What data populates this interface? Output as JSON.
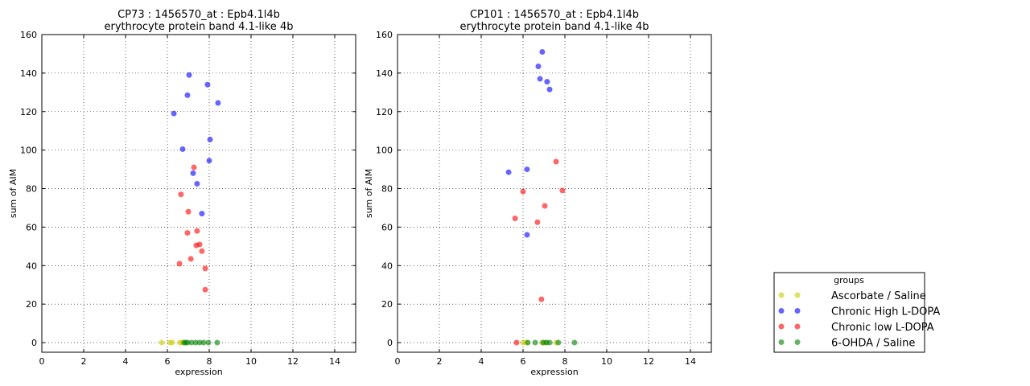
{
  "colors": {
    "Ascorbate / Saline": "#cccc00",
    "Chronic High L-DOPA": "#0000ff",
    "Chronic low L-DOPA": "#ff0000",
    "6-OHDA / Saline": "#008000"
  },
  "legend": {
    "title": "groups",
    "entries": [
      "Ascorbate / Saline",
      "Chronic High L-DOPA",
      "Chronic low L-DOPA",
      "6-OHDA / Saline"
    ],
    "placement": "lower-right outside"
  },
  "chart_data": [
    {
      "type": "scatter",
      "title": "CP73 : 1456570_at : Epb4.1l4b",
      "subtitle": "erythrocyte protein band 4.1-like 4b",
      "xlabel": "expression",
      "ylabel": "sum of AIM",
      "xlim": [
        0,
        15
      ],
      "ylim": [
        -5,
        160
      ],
      "xticks": [
        0,
        2,
        4,
        6,
        8,
        10,
        12,
        14
      ],
      "yticks": [
        0,
        20,
        40,
        60,
        80,
        100,
        120,
        140,
        160
      ],
      "grid": true,
      "series": [
        {
          "name": "Ascorbate / Saline",
          "points": [
            [
              5.73,
              0
            ],
            [
              6.12,
              0
            ],
            [
              6.23,
              0
            ],
            [
              6.6,
              0
            ],
            [
              6.7,
              0
            ]
          ]
        },
        {
          "name": "Chronic High L-DOPA",
          "points": [
            [
              7.04,
              139
            ],
            [
              7.92,
              134
            ],
            [
              6.96,
              128.5
            ],
            [
              8.42,
              124.5
            ],
            [
              6.31,
              119
            ],
            [
              6.73,
              100.5
            ],
            [
              8.04,
              105.5
            ],
            [
              8.0,
              94.5
            ],
            [
              7.23,
              88
            ],
            [
              7.42,
              82.5
            ],
            [
              7.65,
              67
            ]
          ]
        },
        {
          "name": "Chronic low L-DOPA",
          "points": [
            [
              7.27,
              91
            ],
            [
              6.65,
              77
            ],
            [
              7.0,
              68
            ],
            [
              7.42,
              58
            ],
            [
              6.96,
              57
            ],
            [
              7.38,
              50.5
            ],
            [
              7.54,
              51
            ],
            [
              7.65,
              47.5
            ],
            [
              6.58,
              41
            ],
            [
              7.12,
              43.5
            ],
            [
              7.81,
              38.5
            ],
            [
              7.81,
              27.5
            ]
          ]
        },
        {
          "name": "6-OHDA / Saline",
          "points": [
            [
              6.8,
              0
            ],
            [
              6.88,
              0
            ],
            [
              6.96,
              0
            ],
            [
              7.15,
              0
            ],
            [
              7.35,
              0
            ],
            [
              7.54,
              0
            ],
            [
              7.73,
              0
            ],
            [
              7.96,
              0
            ],
            [
              8.38,
              0
            ]
          ]
        }
      ]
    },
    {
      "type": "scatter",
      "title": "CP101 : 1456570_at : Epb4.1l4b",
      "subtitle": "erythrocyte protein band 4.1-like 4b",
      "xlabel": "expression",
      "ylabel": "sum of AIM",
      "xlim": [
        0,
        15
      ],
      "ylim": [
        -5,
        160
      ],
      "xticks": [
        0,
        2,
        4,
        6,
        8,
        10,
        12,
        14
      ],
      "yticks": [
        0,
        20,
        40,
        60,
        80,
        100,
        120,
        140,
        160
      ],
      "grid": true,
      "series": [
        {
          "name": "Ascorbate / Saline",
          "points": [
            [
              6.0,
              0
            ],
            [
              6.15,
              0
            ],
            [
              6.92,
              0
            ],
            [
              7.08,
              0
            ],
            [
              7.58,
              0
            ]
          ]
        },
        {
          "name": "Chronic High L-DOPA",
          "points": [
            [
              6.92,
              151
            ],
            [
              6.73,
              143.5
            ],
            [
              6.81,
              137
            ],
            [
              7.15,
              135.5
            ],
            [
              7.27,
              131.5
            ],
            [
              5.31,
              88.5
            ],
            [
              6.19,
              90
            ],
            [
              6.19,
              56
            ]
          ]
        },
        {
          "name": "Chronic low L-DOPA",
          "points": [
            [
              7.58,
              94
            ],
            [
              6.0,
              78.5
            ],
            [
              7.88,
              79
            ],
            [
              7.04,
              71
            ],
            [
              5.62,
              64.5
            ],
            [
              6.69,
              62.5
            ],
            [
              6.88,
              22.5
            ],
            [
              5.69,
              0
            ]
          ]
        },
        {
          "name": "6-OHDA / Saline",
          "points": [
            [
              6.23,
              0
            ],
            [
              6.58,
              0
            ],
            [
              6.96,
              0
            ],
            [
              7.12,
              0
            ],
            [
              7.27,
              0
            ],
            [
              7.69,
              0
            ],
            [
              8.46,
              0
            ]
          ]
        }
      ]
    }
  ]
}
